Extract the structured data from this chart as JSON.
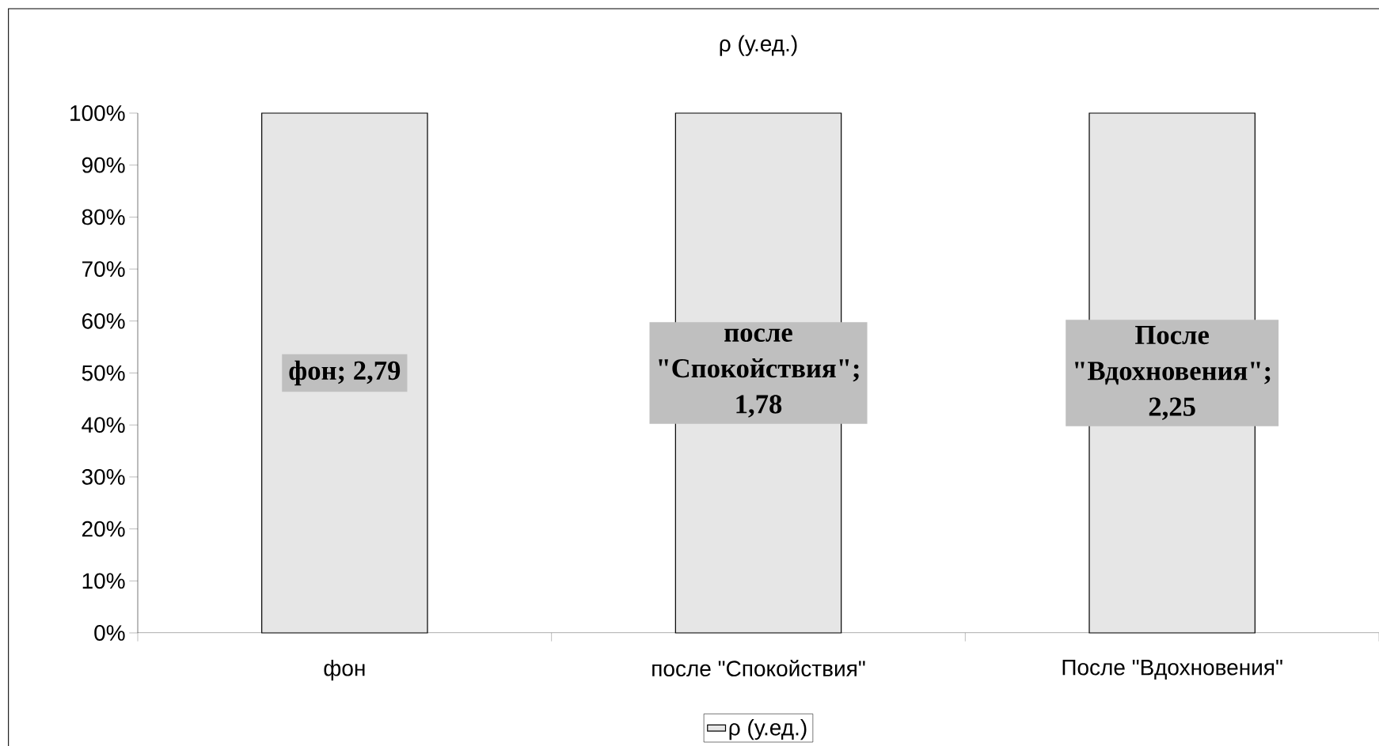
{
  "chart_data": {
    "type": "bar",
    "title": "ρ (у.ед.)",
    "categories": [
      "фон",
      "после \"Спокойствия\"",
      "После \"Вдохновения\""
    ],
    "series": [
      {
        "name": "ρ (у.ед.)",
        "color": "#e6e6e6",
        "values": [
          100,
          100,
          100
        ]
      }
    ],
    "annotations": [
      "фон; 2,79",
      "после \"Спокойствия\"; 1,78",
      "После \"Вдохновения\"; 2,25"
    ],
    "ylim": [
      0,
      100
    ],
    "yticks": [
      {
        "value": 0,
        "label": "0%"
      },
      {
        "value": 10,
        "label": "10%"
      },
      {
        "value": 20,
        "label": "20%"
      },
      {
        "value": 30,
        "label": "30%"
      },
      {
        "value": 40,
        "label": "40%"
      },
      {
        "value": 50,
        "label": "50%"
      },
      {
        "value": 60,
        "label": "60%"
      },
      {
        "value": 70,
        "label": "70%"
      },
      {
        "value": 80,
        "label": "80%"
      },
      {
        "value": 90,
        "label": "90%"
      },
      {
        "value": 100,
        "label": "100%"
      }
    ],
    "legend": "bottom"
  }
}
